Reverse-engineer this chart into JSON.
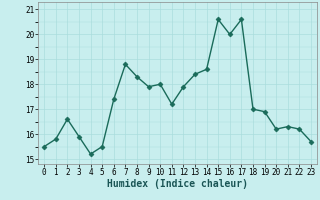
{
  "xlabel": "Humidex (Indice chaleur)",
  "x": [
    0,
    1,
    2,
    3,
    4,
    5,
    6,
    7,
    8,
    9,
    10,
    11,
    12,
    13,
    14,
    15,
    16,
    17,
    18,
    19,
    20,
    21,
    22,
    23
  ],
  "y": [
    15.5,
    15.8,
    16.6,
    15.9,
    15.2,
    15.5,
    17.4,
    18.8,
    18.3,
    17.9,
    18.0,
    17.2,
    17.9,
    18.4,
    18.6,
    20.6,
    20.0,
    20.6,
    17.0,
    16.9,
    16.2,
    16.3,
    16.2,
    15.7
  ],
  "line_color": "#1a6b5a",
  "marker": "D",
  "marker_size": 2.5,
  "linewidth": 1.0,
  "ylim": [
    14.8,
    21.3
  ],
  "yticks": [
    15,
    16,
    17,
    18,
    19,
    20,
    21
  ],
  "xticks": [
    0,
    1,
    2,
    3,
    4,
    5,
    6,
    7,
    8,
    9,
    10,
    11,
    12,
    13,
    14,
    15,
    16,
    17,
    18,
    19,
    20,
    21,
    22,
    23
  ],
  "bg_color": "#c8eeee",
  "grid_color": "#aadddd",
  "label_fontsize": 7,
  "tick_fontsize": 5.5
}
